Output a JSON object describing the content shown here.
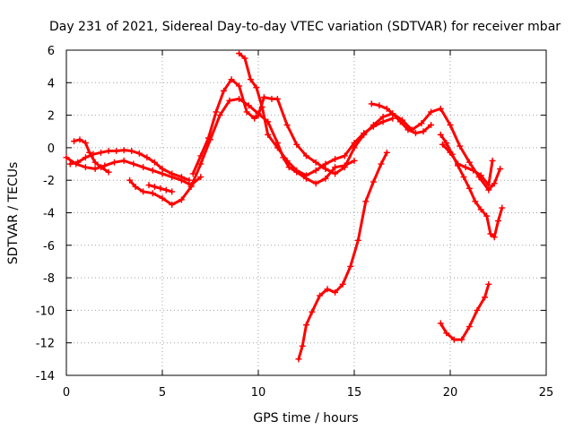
{
  "chart_data": {
    "type": "scatter",
    "title": "Day 231 of 2021, Sidereal Day-to-day VTEC variation (SDTVAR) for receiver mbar",
    "xlabel": "GPS time / hours",
    "ylabel": "SDTVAR / TECUs",
    "xlim": [
      0,
      25
    ],
    "ylim": [
      -14,
      6
    ],
    "xticks": [
      0,
      5,
      10,
      15,
      20,
      25
    ],
    "yticks": [
      -14,
      -12,
      -10,
      -8,
      -6,
      -4,
      -2,
      0,
      2,
      4,
      6
    ],
    "grid": true,
    "legend": "none",
    "marker": "plus",
    "color": "#ff0000",
    "series": [
      {
        "x": [
          0.0,
          0.5,
          1.0,
          1.5,
          2.0,
          2.5,
          3.0,
          3.5,
          4.0,
          4.5,
          5.0,
          5.5,
          6.0,
          6.5,
          7.0
        ],
        "y": [
          -0.6,
          -1.0,
          -1.2,
          -1.3,
          -1.1,
          -0.9,
          -0.8,
          -1.0,
          -1.2,
          -1.4,
          -1.6,
          -1.8,
          -2.0,
          -2.3,
          -1.8
        ]
      },
      {
        "x": [
          0.2,
          0.6,
          1.0,
          1.4,
          1.8,
          2.2,
          2.6,
          3.0,
          3.4,
          3.8,
          4.2,
          4.6,
          5.0,
          5.5,
          6.0,
          6.4
        ],
        "y": [
          -1.0,
          -0.9,
          -0.6,
          -0.4,
          -0.3,
          -0.2,
          -0.2,
          -0.15,
          -0.2,
          -0.35,
          -0.6,
          -0.9,
          -1.3,
          -1.6,
          -1.8,
          -2.0
        ]
      },
      {
        "x": [
          0.4,
          0.7,
          1.0,
          1.2,
          1.5,
          1.8,
          2.2
        ],
        "y": [
          0.4,
          0.5,
          0.3,
          -0.3,
          -0.9,
          -1.2,
          -1.5
        ]
      },
      {
        "x": [
          3.3,
          3.6,
          4.0,
          4.5,
          5.0,
          5.5,
          6.0,
          6.5,
          7.0,
          7.5,
          8.0,
          8.5,
          9.0,
          9.5,
          10.0,
          10.5,
          11.0,
          11.3,
          11.6,
          12.0,
          12.5,
          13.0,
          13.5,
          14.0,
          14.5,
          15.0
        ],
        "y": [
          -2.0,
          -2.4,
          -2.7,
          -2.8,
          -3.1,
          -3.5,
          -3.2,
          -2.4,
          -1.0,
          0.5,
          2.0,
          2.9,
          3.0,
          2.6,
          2.1,
          1.6,
          0.3,
          -0.6,
          -1.2,
          -1.5,
          -1.9,
          -2.2,
          -1.9,
          -1.2,
          -1.1,
          -0.8
        ]
      },
      {
        "x": [
          4.3,
          4.6,
          4.9,
          5.2,
          5.5
        ],
        "y": [
          -2.3,
          -2.4,
          -2.5,
          -2.6,
          -2.7
        ]
      },
      {
        "x": [
          6.6,
          7.0,
          7.4,
          7.8,
          8.2,
          8.6,
          9.0,
          9.4,
          9.8,
          10.0,
          10.3,
          10.7,
          11.0,
          11.5,
          12.0,
          12.5,
          13.0,
          13.5,
          14.0,
          14.5,
          15.0,
          15.5,
          16.0,
          16.5,
          17.0,
          17.5,
          18.0,
          18.5,
          19.0,
          19.5,
          20.0,
          20.5,
          21.0,
          21.5,
          22.0,
          22.3,
          22.6
        ],
        "y": [
          -1.6,
          -0.5,
          0.6,
          2.2,
          3.5,
          4.2,
          3.8,
          2.2,
          1.8,
          2.0,
          3.1,
          3.0,
          3.0,
          1.4,
          0.2,
          -0.5,
          -0.9,
          -1.3,
          -1.6,
          -1.2,
          0.0,
          0.8,
          1.4,
          1.9,
          2.1,
          1.7,
          1.1,
          1.5,
          2.2,
          2.4,
          1.4,
          0.1,
          -0.9,
          -1.8,
          -2.6,
          -2.2,
          -1.3
        ]
      },
      {
        "x": [
          9.0,
          9.3,
          9.6,
          9.9,
          10.2,
          10.5,
          11.0,
          11.5,
          12.0,
          12.5,
          13.0,
          13.5,
          14.0,
          14.5,
          15.0,
          15.5,
          16.0,
          16.5,
          17.0
        ],
        "y": [
          5.8,
          5.5,
          4.2,
          3.7,
          2.5,
          0.8,
          0.0,
          -0.8,
          -1.4,
          -1.7,
          -1.4,
          -1.0,
          -0.7,
          -0.5,
          0.3,
          0.9,
          1.3,
          1.6,
          1.8
        ]
      },
      {
        "x": [
          15.9,
          16.3,
          16.7,
          17.0,
          17.4,
          17.8,
          18.2,
          18.6,
          19.0
        ],
        "y": [
          2.7,
          2.6,
          2.4,
          2.1,
          1.6,
          1.1,
          0.9,
          1.0,
          1.4
        ]
      },
      {
        "x": [
          19.5,
          19.8,
          20.1,
          20.4,
          20.7,
          21.0,
          21.3,
          21.6,
          21.9,
          22.1,
          22.3,
          22.5,
          22.7
        ],
        "y": [
          0.8,
          0.3,
          -0.4,
          -1.1,
          -1.8,
          -2.5,
          -3.3,
          -3.8,
          -4.2,
          -5.3,
          -5.5,
          -4.5,
          -3.7
        ]
      },
      {
        "x": [
          19.6,
          20.0,
          20.4,
          20.8,
          21.2,
          21.6,
          22.0,
          22.2
        ],
        "y": [
          0.2,
          -0.3,
          -1.0,
          -1.2,
          -1.4,
          -1.7,
          -2.3,
          -0.8
        ]
      },
      {
        "x": [
          12.1,
          12.3,
          12.5,
          12.8,
          13.2,
          13.6,
          14.0,
          14.4,
          14.8,
          15.2,
          15.6,
          16.0,
          16.4,
          16.7
        ],
        "y": [
          -13.0,
          -12.2,
          -10.9,
          -10.1,
          -9.1,
          -8.7,
          -8.9,
          -8.4,
          -7.3,
          -5.7,
          -3.3,
          -2.1,
          -1.0,
          -0.3
        ]
      },
      {
        "x": [
          19.5,
          19.8,
          20.2,
          20.6,
          21.0,
          21.4,
          21.8,
          22.0
        ],
        "y": [
          -10.8,
          -11.4,
          -11.8,
          -11.8,
          -11.0,
          -10.0,
          -9.2,
          -8.4
        ]
      }
    ]
  }
}
